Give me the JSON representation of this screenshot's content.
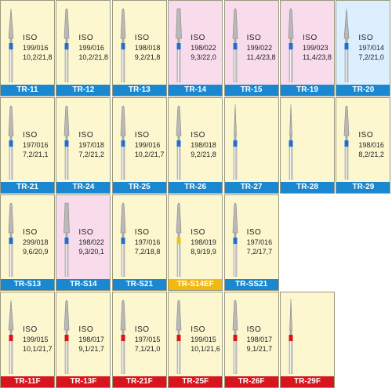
{
  "colors": {
    "bg_yellow": "#fdf7cf",
    "bg_pink": "#f8dcec",
    "bg_blue": "#dcefff",
    "label_blue": "#1a88d0",
    "label_red": "#d8141e",
    "label_yellow": "#f1b90f",
    "band_blue": "#1f6fd1",
    "band_red": "#d8141e",
    "band_yellow": "#e8c31a"
  },
  "rows": [
    [
      {
        "label": "TR-11",
        "iso": "ISO",
        "code": "199/016",
        "dims": "10,2/21,8",
        "bg": "yellow",
        "label_color": "blue",
        "band": "blue",
        "shape": "taper-point"
      },
      {
        "label": "TR-12",
        "iso": "ISO",
        "code": "199/016",
        "dims": "10,2/21,8",
        "bg": "yellow",
        "label_color": "blue",
        "band": "blue",
        "shape": "taper-round"
      },
      {
        "label": "TR-13",
        "iso": "ISO",
        "code": "198/018",
        "dims": "9,2/21,8",
        "bg": "yellow",
        "label_color": "blue",
        "band": "blue",
        "shape": "taper-round"
      },
      {
        "label": "TR-14",
        "iso": "ISO",
        "code": "198/022",
        "dims": "9,3/22,0",
        "bg": "pink",
        "label_color": "blue",
        "band": "blue",
        "shape": "taper-flat"
      },
      {
        "label": "TR-15",
        "iso": "ISO",
        "code": "199/022",
        "dims": "11,4/23,8",
        "bg": "pink",
        "label_color": "blue",
        "band": "blue",
        "shape": "taper-round"
      },
      {
        "label": "TR-19",
        "iso": "ISO",
        "code": "199/023",
        "dims": "11,4/23,8",
        "bg": "pink",
        "label_color": "blue",
        "band": "blue",
        "shape": "taper-round"
      },
      {
        "label": "TR-20",
        "iso": "ISO",
        "code": "197/014",
        "dims": "7,2/21,0",
        "bg": "blue",
        "label_color": "blue",
        "band": "blue",
        "shape": "taper-point"
      }
    ],
    [
      {
        "label": "TR-21",
        "iso": "ISO",
        "code": "197/016",
        "dims": "7,2/21,1",
        "bg": "yellow",
        "label_color": "blue",
        "band": "blue",
        "shape": "taper-round"
      },
      {
        "label": "TR-24",
        "iso": "ISO",
        "code": "197/018",
        "dims": "7,2/21,2",
        "bg": "yellow",
        "label_color": "blue",
        "band": "blue",
        "shape": "taper-round"
      },
      {
        "label": "TR-25",
        "iso": "ISO",
        "code": "199/016",
        "dims": "10,2/21,7",
        "bg": "yellow",
        "label_color": "blue",
        "band": "blue",
        "shape": "taper-round"
      },
      {
        "label": "TR-26",
        "iso": "ISO",
        "code": "198/018",
        "dims": "9,2/21,8",
        "bg": "yellow",
        "label_color": "blue",
        "band": "blue",
        "shape": "taper-round"
      },
      {
        "label": "TR-27",
        "iso": "",
        "code": "",
        "dims": "",
        "bg": "yellow",
        "label_color": "blue",
        "band": "blue",
        "shape": "needle"
      },
      {
        "label": "TR-28",
        "iso": "",
        "code": "",
        "dims": "",
        "bg": "yellow",
        "label_color": "blue",
        "band": "blue",
        "shape": "needle"
      },
      {
        "label": "TR-29",
        "iso": "ISO",
        "code": "198/016",
        "dims": "8,2/21,2",
        "bg": "yellow",
        "label_color": "blue",
        "band": "blue",
        "shape": "taper-round"
      }
    ],
    [
      {
        "label": "TR-S13",
        "iso": "ISO",
        "code": "299/018",
        "dims": "9,6/20,9",
        "bg": "yellow",
        "label_color": "blue",
        "band": "blue",
        "shape": "taper-round"
      },
      {
        "label": "TR-S14",
        "iso": "ISO",
        "code": "198/022",
        "dims": "9,3/20,1",
        "bg": "pink",
        "label_color": "blue",
        "band": "blue",
        "shape": "taper-flat"
      },
      {
        "label": "TR-S21",
        "iso": "ISO",
        "code": "197/016",
        "dims": "7,2/18,8",
        "bg": "yellow",
        "label_color": "blue",
        "band": "blue",
        "shape": "taper-round"
      },
      {
        "label": "TR-S14EF",
        "iso": "ISO",
        "code": "198/019",
        "dims": "8,9/19,9",
        "bg": "yellow",
        "label_color": "yellow",
        "band": "yellow",
        "shape": "taper-round"
      },
      {
        "label": "TR-SS21",
        "iso": "ISO",
        "code": "197/016",
        "dims": "7,2/17,7",
        "bg": "yellow",
        "label_color": "blue",
        "band": "blue",
        "shape": "taper-round"
      }
    ],
    [
      {
        "label": "TR-11F",
        "iso": "ISO",
        "code": "199/015",
        "dims": "10,1/21,7",
        "bg": "yellow",
        "label_color": "red",
        "band": "red",
        "shape": "taper-point"
      },
      {
        "label": "TR-13F",
        "iso": "ISO",
        "code": "198/017",
        "dims": "9,1/21,7",
        "bg": "yellow",
        "label_color": "red",
        "band": "red",
        "shape": "taper-round"
      },
      {
        "label": "TR-21F",
        "iso": "ISO",
        "code": "197/015",
        "dims": "7,1/21,0",
        "bg": "yellow",
        "label_color": "red",
        "band": "red",
        "shape": "taper-round"
      },
      {
        "label": "TR-25F",
        "iso": "ISO",
        "code": "199/015",
        "dims": "10,1/21,6",
        "bg": "yellow",
        "label_color": "red",
        "band": "red",
        "shape": "taper-round"
      },
      {
        "label": "TR-26F",
        "iso": "ISO",
        "code": "198/017",
        "dims": "9,1/21,7",
        "bg": "yellow",
        "label_color": "red",
        "band": "red",
        "shape": "taper-round"
      },
      {
        "label": "TR-29F",
        "iso": "",
        "code": "",
        "dims": "",
        "bg": "yellow",
        "label_color": "red",
        "band": "red",
        "shape": "needle"
      }
    ]
  ]
}
